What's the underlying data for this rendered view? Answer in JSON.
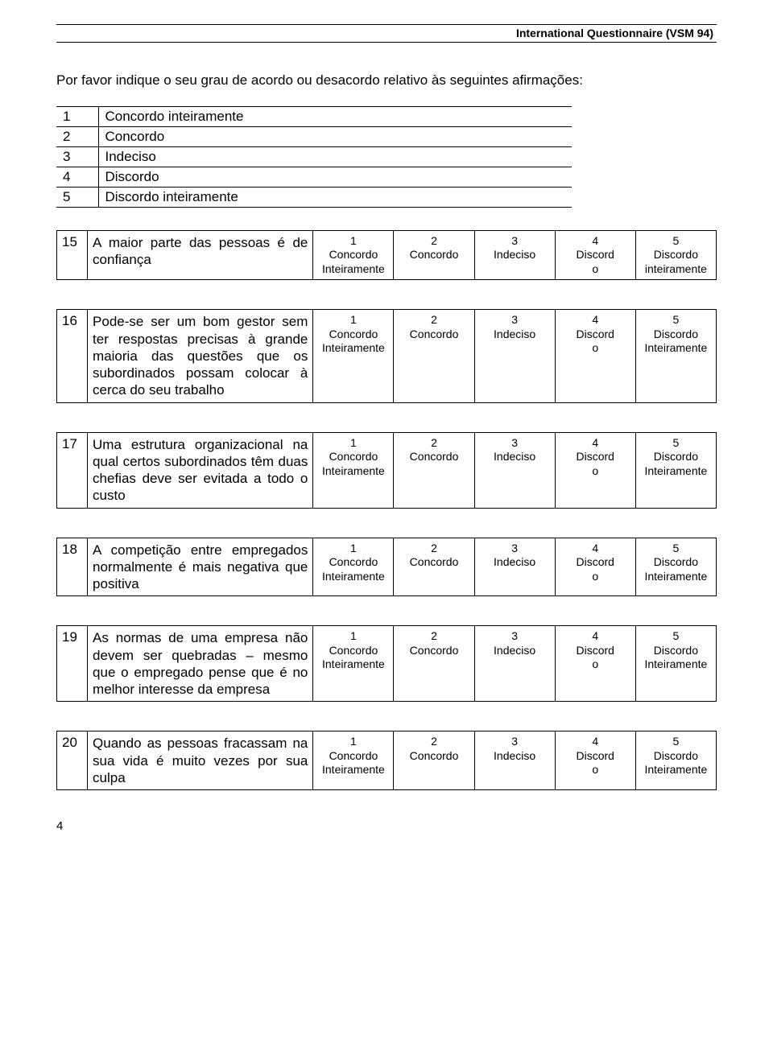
{
  "header": {
    "title": "International Questionnaire (VSM 94)"
  },
  "intro": "Por favor indique o seu grau de acordo ou desacordo relativo às seguintes afirmações:",
  "legend": [
    {
      "n": "1",
      "label": "Concordo inteiramente"
    },
    {
      "n": "2",
      "label": "Concordo"
    },
    {
      "n": "3",
      "label": "Indeciso"
    },
    {
      "n": "4",
      "label": "Discordo"
    },
    {
      "n": "5",
      "label": "Discordo inteiramente"
    }
  ],
  "options_std": {
    "c1": "1\nConcordo\nInteiramente",
    "c2": "2\nConcordo",
    "c3": "3\nIndeciso",
    "c4": "4\nDiscord\no",
    "c5_std": "5\nDiscordo\nInteiramente",
    "c5_lower": "5\nDiscordo\ninteiramente"
  },
  "questions": [
    {
      "num": "15",
      "text": "A maior parte das pessoas é de confiança",
      "opt5_variant": "c5_lower"
    },
    {
      "num": "16",
      "text": "Pode-se ser um bom gestor sem ter respostas precisas à grande maioria das questões que os subordinados possam colocar à cerca do seu trabalho",
      "opt5_variant": "c5_std"
    },
    {
      "num": "17",
      "text": "Uma estrutura organizacional na qual certos subordinados têm duas chefias deve ser evitada a todo o custo",
      "opt5_variant": "c5_std"
    },
    {
      "num": "18",
      "text": "A competição entre empregados normalmente é mais negativa que positiva",
      "opt5_variant": "c5_std"
    },
    {
      "num": "19",
      "text": "As normas de uma empresa não devem ser quebradas – mesmo que o empregado pense que é no melhor interesse da empresa",
      "opt5_variant": "c5_std"
    },
    {
      "num": "20",
      "text": "Quando as pessoas fracassam na sua vida é muito vezes por sua culpa",
      "opt5_variant": "c5_std"
    }
  ],
  "page_number": "4"
}
